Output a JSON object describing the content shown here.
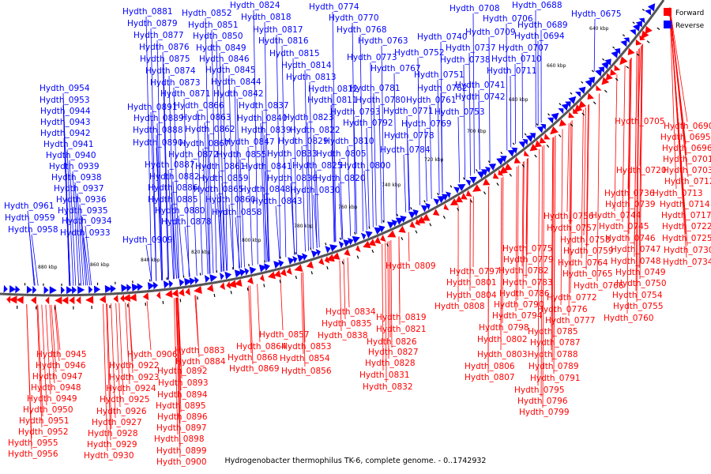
{
  "caption": "Hydrogenobacter thermophilus TK-6, complete genome. - 0..1742932",
  "legend": [
    {
      "label": "Forward",
      "color": "#ff0000"
    },
    {
      "label": "Reverse",
      "color": "#0000ff"
    }
  ],
  "colors": {
    "forward": "#ff0000",
    "reverse": "#0000ff",
    "backbone": "#444444"
  },
  "ticks": [
    "640 kbp",
    "660 kbp",
    "680 kbp",
    "700 kbp",
    "720 kbp",
    "740 kbp",
    "760 kbp",
    "780 kbp",
    "800 kbp",
    "820 kbp",
    "840 kbp",
    "860 kbp",
    "880 kbp"
  ],
  "genes": {
    "reverse_upper": [
      "Hydth_0675",
      "Hydth_0688",
      "Hydth_0689",
      "Hydth_0694",
      "Hydth_0706",
      "Hydth_0707",
      "Hydth_0708",
      "Hydth_0709",
      "Hydth_0710",
      "Hydth_0711",
      "Hydth_0737",
      "Hydth_0738",
      "Hydth_0740",
      "Hydth_0741",
      "Hydth_0742",
      "Hydth_0751",
      "Hydth_0752",
      "Hydth_0753",
      "Hydth_0761",
      "Hydth_0762",
      "Hydth_0763",
      "Hydth_0767",
      "Hydth_0768",
      "Hydth_0769",
      "Hydth_0770",
      "Hydth_0771",
      "Hydth_0773",
      "Hydth_0774",
      "Hydth_0778",
      "Hydth_0780",
      "Hydth_0781",
      "Hydth_0784",
      "Hydth_0792",
      "Hydth_0793",
      "Hydth_0800",
      "Hydth_0805",
      "Hydth_0810",
      "Hydth_0811",
      "Hydth_0812",
      "Hydth_0813",
      "Hydth_0814",
      "Hydth_0815",
      "Hydth_0816",
      "Hydth_0817",
      "Hydth_0818",
      "Hydth_0820",
      "Hydth_0822",
      "Hydth_0823",
      "Hydth_0824",
      "Hydth_0825",
      "Hydth_0829",
      "Hydth_0830",
      "Hydth_0833",
      "Hydth_0836",
      "Hydth_0837",
      "Hydth_0839",
      "Hydth_0840",
      "Hydth_0841",
      "Hydth_0842",
      "Hydth_0843",
      "Hydth_0844",
      "Hydth_0845",
      "Hydth_0846",
      "Hydth_0847",
      "Hydth_0848",
      "Hydth_0849",
      "Hydth_0850",
      "Hydth_0851",
      "Hydth_0852",
      "Hydth_0855",
      "Hydth_0858",
      "Hydth_0859",
      "Hydth_0860",
      "Hydth_0861",
      "Hydth_0862",
      "Hydth_0863",
      "Hydth_0865",
      "Hydth_0866",
      "Hydth_0867",
      "Hydth_0871",
      "Hydth_0872",
      "Hydth_0873",
      "Hydth_0874",
      "Hydth_0875",
      "Hydth_0876",
      "Hydth_0877",
      "Hydth_0878",
      "Hydth_0879",
      "Hydth_0880",
      "Hydth_0881",
      "Hydth_0882",
      "Hydth_0885",
      "Hydth_0886",
      "Hydth_0887",
      "Hydth_0888",
      "Hydth_0889",
      "Hydth_0890",
      "Hydth_0891",
      "Hydth_0909",
      "Hydth_0933",
      "Hydth_0934",
      "Hydth_0935",
      "Hydth_0936",
      "Hydth_0937",
      "Hydth_0938",
      "Hydth_0939",
      "Hydth_0940",
      "Hydth_0941",
      "Hydth_0942",
      "Hydth_0943",
      "Hydth_0944",
      "Hydth_0953",
      "Hydth_0954",
      "Hydth_0958",
      "Hydth_0959",
      "Hydth_0961"
    ],
    "forward_lower": [
      "Hydth_0690",
      "Hydth_0695",
      "Hydth_0696",
      "Hydth_0701",
      "Hydth_0703",
      "Hydth_0705",
      "Hydth_0712",
      "Hydth_0713",
      "Hydth_0714",
      "Hydth_0717",
      "Hydth_0720",
      "Hydth_0722",
      "Hydth_0725",
      "Hydth_0730",
      "Hydth_0734",
      "Hydth_0736",
      "Hydth_0739",
      "Hydth_0744",
      "Hydth_0745",
      "Hydth_0746",
      "Hydth_0747",
      "Hydth_0748",
      "Hydth_0749",
      "Hydth_0750",
      "Hydth_0754",
      "Hydth_0755",
      "Hydth_0756",
      "Hydth_0757",
      "Hydth_0758",
      "Hydth_0759",
      "Hydth_0760",
      "Hydth_0764",
      "Hydth_0765",
      "Hydth_0766",
      "Hydth_0772",
      "Hydth_0775",
      "Hydth_0776",
      "Hydth_0777",
      "Hydth_0779",
      "Hydth_0782",
      "Hydth_0783",
      "Hydth_0785",
      "Hydth_0786",
      "Hydth_0787",
      "Hydth_0788",
      "Hydth_0789",
      "Hydth_0790",
      "Hydth_0791",
      "Hydth_0794",
      "Hydth_0795",
      "Hydth_0796",
      "Hydth_0797",
      "Hydth_0798",
      "Hydth_0799",
      "Hydth_0801",
      "Hydth_0802",
      "Hydth_0803",
      "Hydth_0804",
      "Hydth_0806",
      "Hydth_0807",
      "Hydth_0808",
      "Hydth_0809",
      "Hydth_0819",
      "Hydth_0821",
      "Hydth_0826",
      "Hydth_0827",
      "Hydth_0828",
      "Hydth_0831",
      "Hydth_0832",
      "Hydth_0834",
      "Hydth_0835",
      "Hydth_0838",
      "Hydth_0853",
      "Hydth_0854",
      "Hydth_0856",
      "Hydth_0857",
      "Hydth_0864",
      "Hydth_0868",
      "Hydth_0869",
      "Hydth_0883",
      "Hydth_0884",
      "Hydth_0892",
      "Hydth_0893",
      "Hydth_0894",
      "Hydth_0895",
      "Hydth_0896",
      "Hydth_0897",
      "Hydth_0898",
      "Hydth_0899",
      "Hydth_0900",
      "Hydth_0906",
      "Hydth_0922",
      "Hydth_0923",
      "Hydth_0924",
      "Hydth_0925",
      "Hydth_0926",
      "Hydth_0927",
      "Hydth_0928",
      "Hydth_0929",
      "Hydth_0930",
      "Hydth_0945",
      "Hydth_0946",
      "Hydth_0947",
      "Hydth_0948",
      "Hydth_0949",
      "Hydth_0950",
      "Hydth_0951",
      "Hydth_0952",
      "Hydth_0955",
      "Hydth_0956"
    ]
  }
}
